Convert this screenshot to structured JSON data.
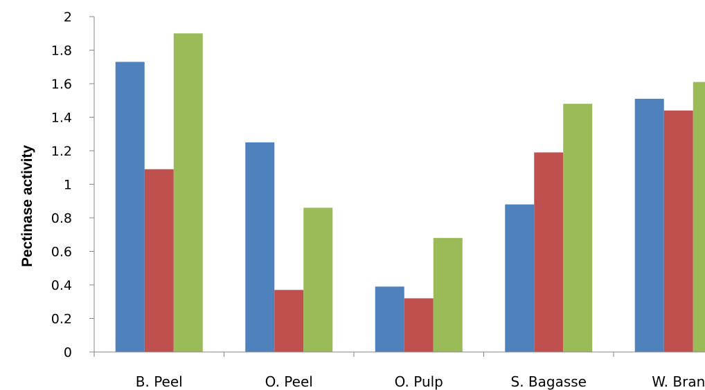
{
  "chart_data": {
    "type": "bar",
    "categories": [
      "B. Peel",
      "O. Peel",
      "O. Pulp",
      "S. Bagasse",
      "W. Bran"
    ],
    "series": [
      {
        "values": [
          1.73,
          1.25,
          0.39,
          0.88,
          1.51
        ],
        "color": "#4F81BD"
      },
      {
        "values": [
          1.09,
          0.37,
          0.32,
          1.19,
          1.44
        ],
        "color": "#C0504D"
      },
      {
        "values": [
          1.9,
          0.86,
          0.68,
          1.48,
          1.61
        ],
        "color": "#9BBB59"
      }
    ],
    "title": "",
    "xlabel": "",
    "ylabel": "Pectinase activity",
    "ylim": [
      0,
      2
    ],
    "yticks": [
      "0",
      "0.2",
      "0.4",
      "0.6",
      "0.8",
      "1",
      "1.2",
      "1.4",
      "1.6",
      "1.8",
      "2"
    ],
    "grid": false,
    "legend": "none"
  }
}
